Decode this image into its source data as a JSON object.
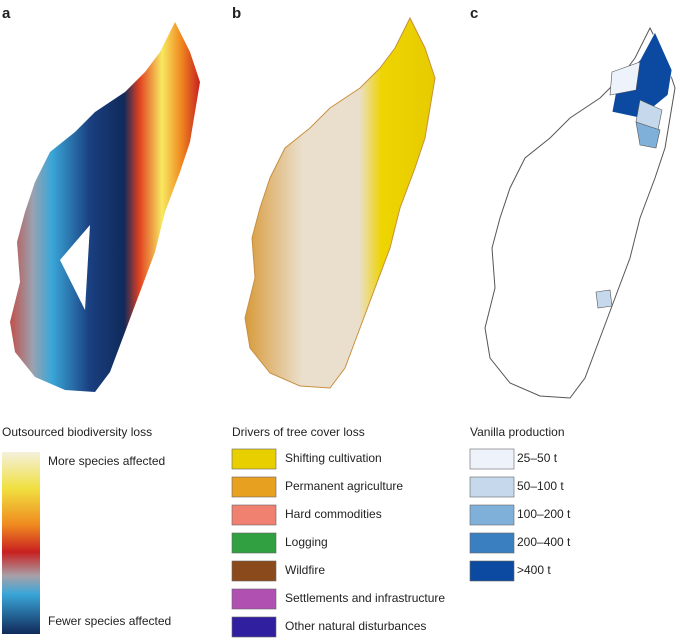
{
  "panels": [
    {
      "label": "a",
      "legend_title": "Outsourced biodiversity loss",
      "scale_top": "More species affected",
      "scale_bottom": "Fewer species affected"
    },
    {
      "label": "b",
      "legend_title": "Drivers of tree cover loss",
      "items": [
        {
          "label": "Shifting cultivation",
          "color": "#e8d000"
        },
        {
          "label": "Permanent agriculture",
          "color": "#e8a020"
        },
        {
          "label": "Hard commodities",
          "color": "#f08070"
        },
        {
          "label": "Logging",
          "color": "#30a040"
        },
        {
          "label": "Wildfire",
          "color": "#8b4a1c"
        },
        {
          "label": "Settlements and infrastructure",
          "color": "#b050b0"
        },
        {
          "label": "Other natural disturbances",
          "color": "#3020a0"
        }
      ]
    },
    {
      "label": "c",
      "legend_title": "Vanilla production",
      "items": [
        {
          "label": "25–50 t",
          "color": "#eef3fb"
        },
        {
          "label": "50–100 t",
          "color": "#c6d9ec"
        },
        {
          "label": "100–200 t",
          "color": "#7fb0da"
        },
        {
          "label": "200–400 t",
          "color": "#3a7fc0"
        },
        {
          "label": ">400 t",
          "color": "#0b4aa0"
        }
      ]
    }
  ]
}
